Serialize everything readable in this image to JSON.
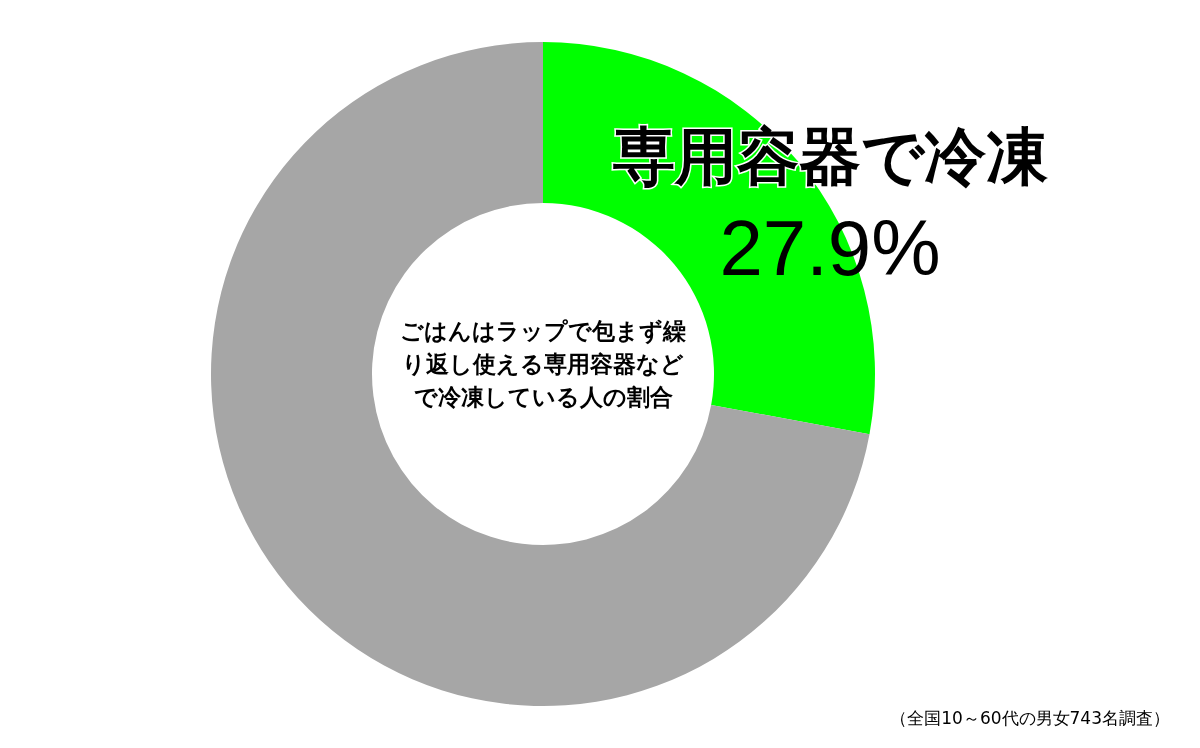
{
  "chart_data": {
    "type": "donut",
    "title": "ごはんはラップで包まず繰り返し使える専用容器などで冷凍している人の割合",
    "categories": [
      "専用容器で冷凍",
      null
    ],
    "values": [
      27.9,
      72.1
    ],
    "colors": [
      "#00ff00",
      "#a6a6a6"
    ],
    "value_labels": [
      "27.9%",
      null
    ],
    "annotations": [
      "（全国10～60代の男女743名調査）"
    ]
  }
}
